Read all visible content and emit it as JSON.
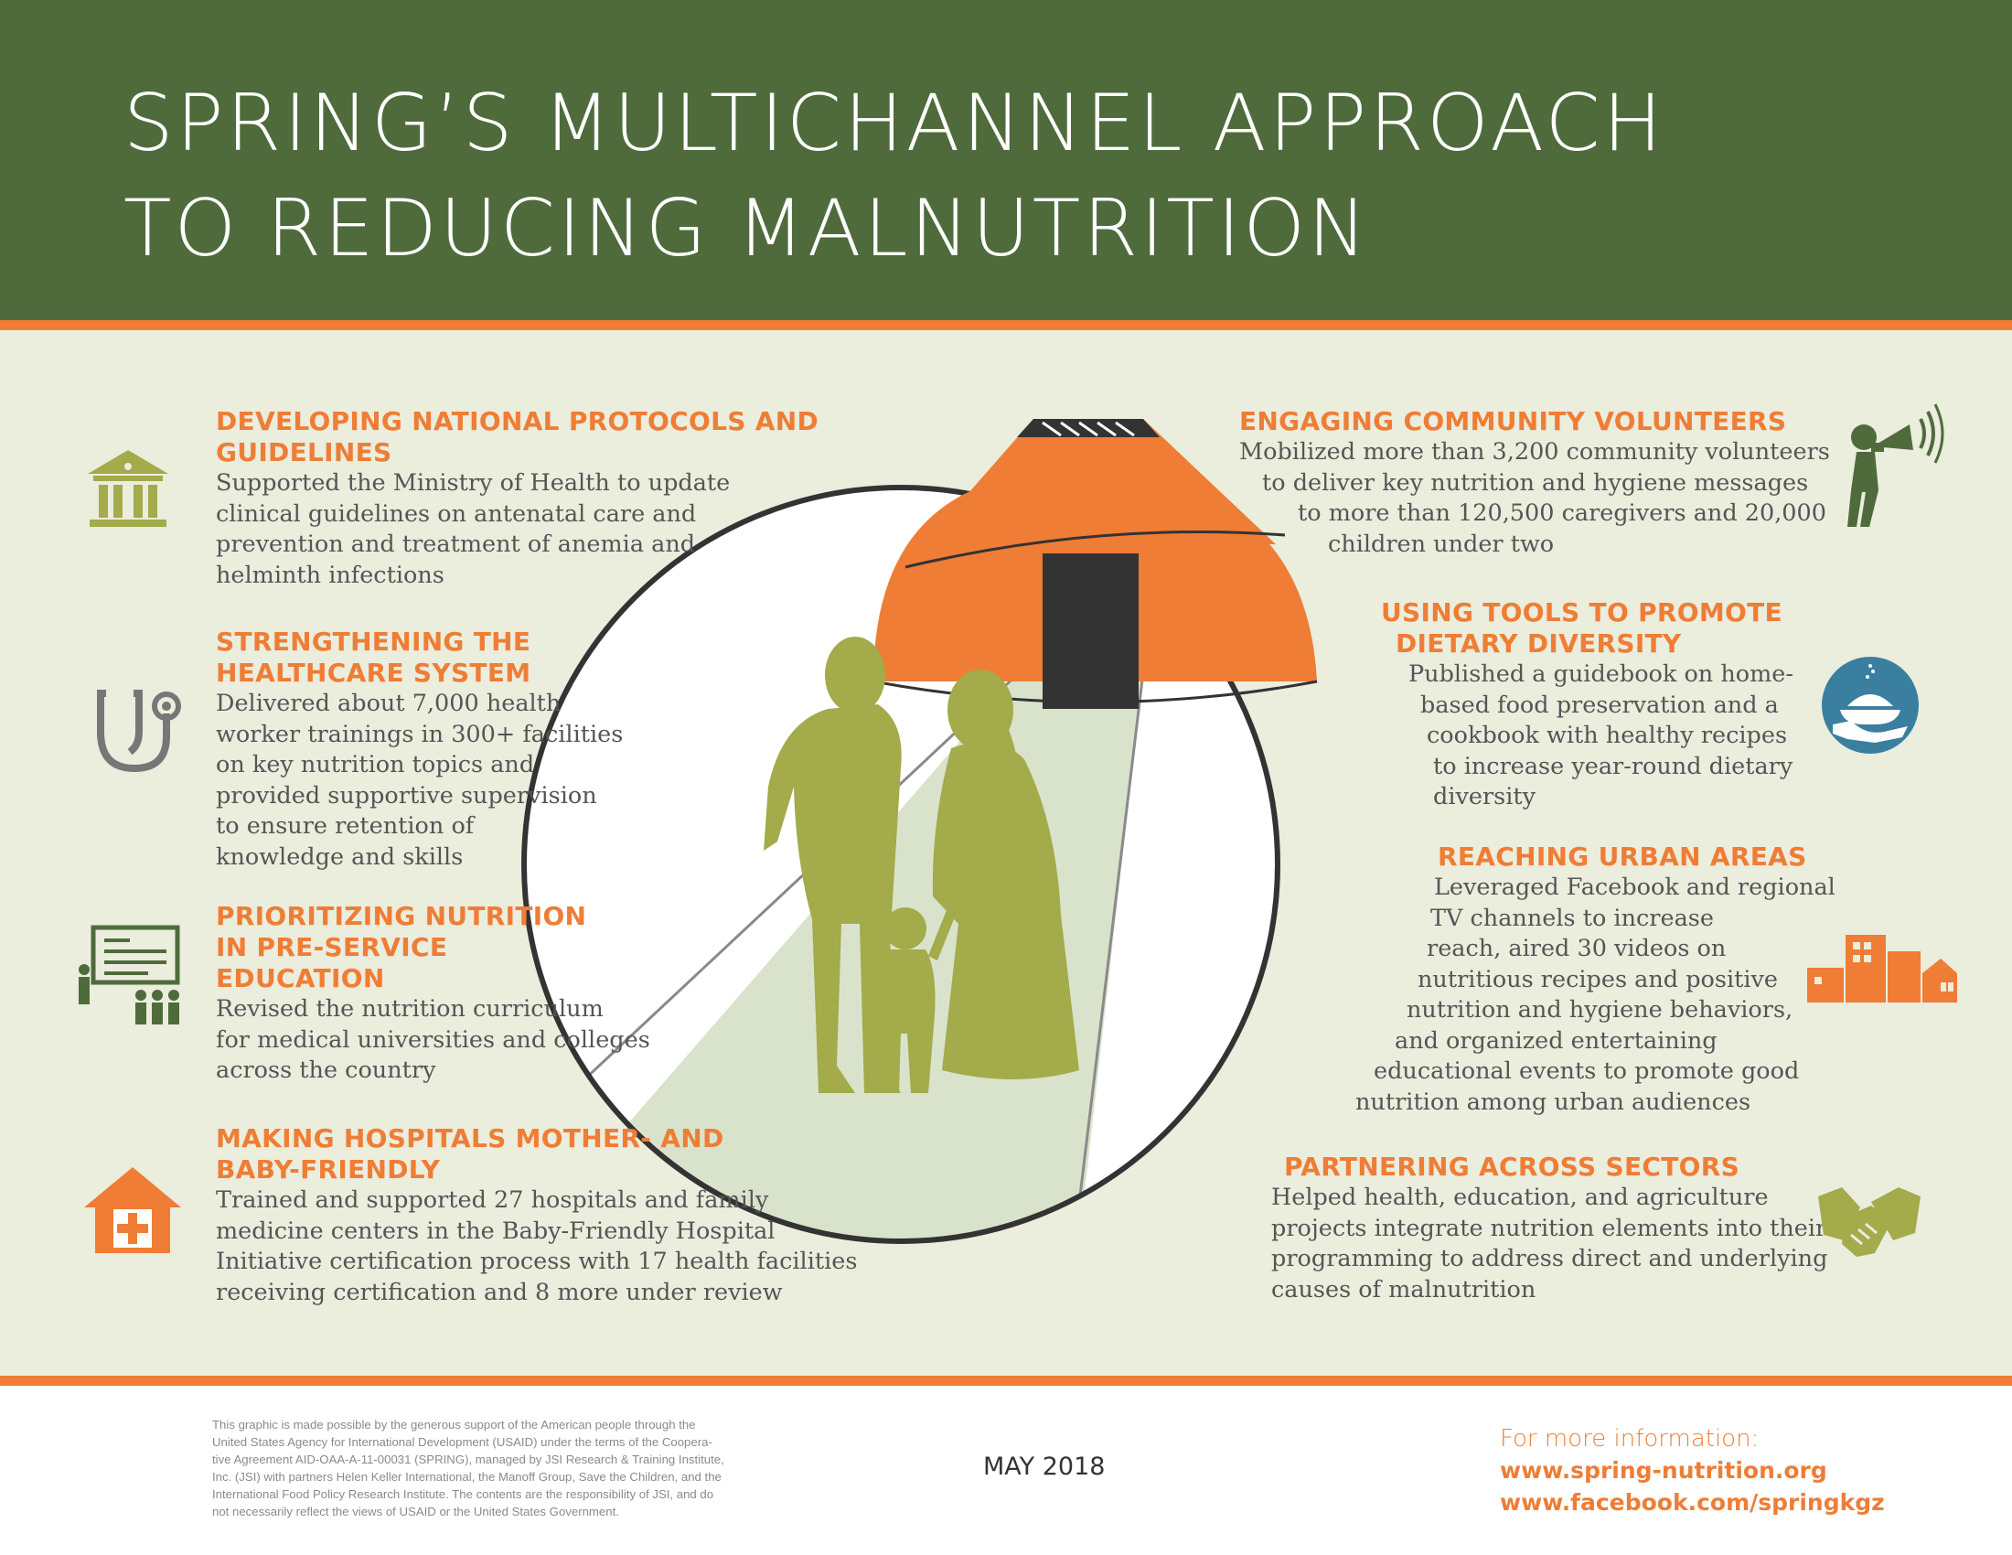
{
  "title": {
    "line1": "SPRING’S MULTICHANNEL APPROACH",
    "line2": "TO REDUCING MALNUTRITION"
  },
  "colors": {
    "header_green": "#4f6b3c",
    "accent_orange": "#ef7d35",
    "panel_beige": "#ebeddd",
    "figure_green": "#a3ab4a",
    "icon_gray": "#777777",
    "icon_blue": "#3a7fa0",
    "yurt_dark": "#333333"
  },
  "left_sections": [
    {
      "heading": [
        "DEVELOPING NATIONAL PROTOCOLS AND",
        "GUIDELINES"
      ],
      "body": [
        "Supported the Ministry of Health to update",
        "clinical guidelines on antenatal care and",
        "prevention and treatment of anemia and",
        "helminth infections"
      ],
      "icon": "government-building-icon"
    },
    {
      "heading": [
        "STRENGTHENING THE",
        "HEALTHCARE SYSTEM"
      ],
      "body": [
        "Delivered about 7,000 health",
        "worker trainings in 300+ facilities",
        "on key nutrition topics and",
        "provided supportive supervision",
        "to ensure retention of",
        "knowledge and skills"
      ],
      "icon": "stethoscope-icon"
    },
    {
      "heading": [
        "PRIORITIZING NUTRITION",
        "IN PRE-SERVICE",
        "EDUCATION"
      ],
      "body": [
        "Revised the nutrition curriculum",
        "for medical universities and colleges",
        "across the country"
      ],
      "icon": "classroom-icon"
    },
    {
      "heading": [
        "MAKING HOSPITALS MOTHER- AND",
        "BABY-FRIENDLY"
      ],
      "body": [
        "Trained and supported 27 hospitals and family",
        "medicine centers in the Baby-Friendly Hospital",
        "Initiative certification process with 17 health facilities",
        "receiving certification and 8 more under review"
      ],
      "icon": "hospital-house-icon"
    }
  ],
  "right_sections": [
    {
      "heading": [
        "ENGAGING COMMUNITY VOLUNTEERS"
      ],
      "body": [
        "Mobilized more than 3,200 community volunteers",
        "to deliver key nutrition and hygiene messages",
        "to more than 120,500 caregivers and 20,000",
        "children under two"
      ],
      "icon": "megaphone-person-icon"
    },
    {
      "heading": [
        "USING TOOLS TO PROMOTE",
        "DIETARY DIVERSITY"
      ],
      "body": [
        "Published a guidebook on home-",
        "based food preservation and a",
        "cookbook with healthy recipes",
        "to increase year-round dietary",
        "diversity"
      ],
      "icon": "food-in-hand-icon"
    },
    {
      "heading": [
        "REACHING URBAN AREAS"
      ],
      "body": [
        "Leveraged Facebook and regional",
        "TV channels to increase",
        "reach, aired 30 videos on",
        "nutritious recipes and positive",
        "nutrition and hygiene behaviors,",
        "and organized entertaining",
        "educational events to promote good",
        "nutrition among urban audiences"
      ],
      "icon": "city-buildings-icon"
    },
    {
      "heading": [
        "PARTNERING ACROSS SECTORS"
      ],
      "body": [
        "Helped health, education, and agriculture",
        "projects integrate nutrition elements into their",
        "programming to address direct and underlying",
        "causes of malnutrition"
      ],
      "icon": "handshake-icon"
    }
  ],
  "footer": {
    "note_lines": [
      "This graphic is made possible by the generous support of the American people through the",
      "United States Agency for International Development (USAID) under the terms of the Coopera-",
      "tive Agreement AID-OAA-A-11-00031 (SPRING), managed by JSI Research & Training Institute,",
      "Inc. (JSI) with partners Helen Keller International, the Manoff Group, Save the Children, and the",
      "International Food Policy Research Institute. The contents are the responsibility of JSI, and do",
      "not necessarily reflect the views of USAID or the United States Government."
    ],
    "date": "MAY 2018",
    "more_info_label": "For more information:",
    "links": [
      "www.spring-nutrition.org",
      "www.facebook.com/springkgz"
    ]
  }
}
